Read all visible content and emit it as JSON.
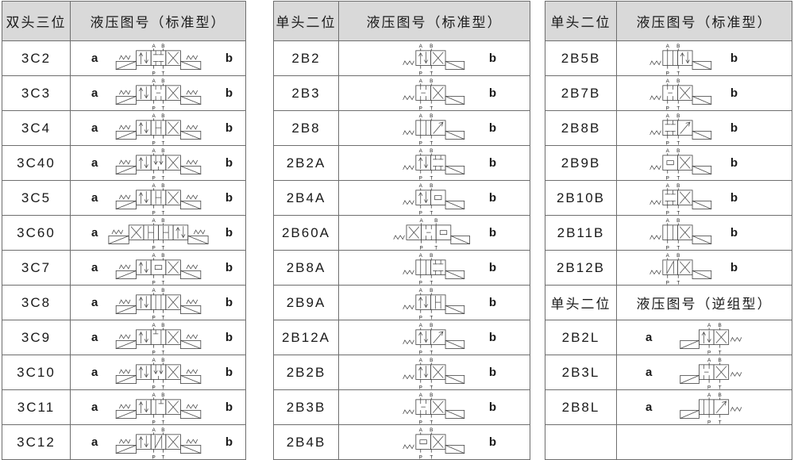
{
  "colors": {
    "page_bg": "#ffffff",
    "header_bg": "#d9d9d9",
    "border": "#6e6e6e",
    "text": "#1a1a1a",
    "line": "#4a4a4a"
  },
  "port_labels": {
    "a": "A",
    "b": "B",
    "p": "P",
    "t": "T"
  },
  "tables": [
    {
      "header": {
        "col1": "双头三位",
        "col2": "液压图号（标准型）"
      },
      "rows": [
        {
          "kind": "row",
          "code": "3C2",
          "left": "a",
          "right": "b",
          "symbol": {
            "form": "double",
            "boxes": [
              "arrows",
              "blocked",
              "x"
            ]
          }
        },
        {
          "kind": "row",
          "code": "3C3",
          "left": "a",
          "right": "b",
          "symbol": {
            "form": "double",
            "boxes": [
              "arrows",
              "hbar",
              "x"
            ]
          }
        },
        {
          "kind": "row",
          "code": "3C4",
          "left": "a",
          "right": "b",
          "symbol": {
            "form": "double",
            "boxes": [
              "arrows",
              "hfull",
              "x"
            ]
          }
        },
        {
          "kind": "row",
          "code": "3C40",
          "left": "a",
          "right": "b",
          "symbol": {
            "form": "double",
            "boxes": [
              "arrows",
              "down2",
              "x"
            ]
          }
        },
        {
          "kind": "row",
          "code": "3C5",
          "left": "a",
          "right": "b",
          "symbol": {
            "form": "double",
            "boxes": [
              "arrows",
              "hfull",
              "x"
            ]
          }
        },
        {
          "kind": "row",
          "code": "3C60",
          "left": "a",
          "right": "b",
          "symbol": {
            "form": "double",
            "boxes": [
              "x",
              "hfull",
              "hfull",
              "arrows"
            ]
          }
        },
        {
          "kind": "row",
          "code": "3C7",
          "left": "a",
          "right": "b",
          "symbol": {
            "form": "double",
            "boxes": [
              "arrows",
              "ubox",
              "x"
            ]
          }
        },
        {
          "kind": "row",
          "code": "3C8",
          "left": "a",
          "right": "b",
          "symbol": {
            "form": "double",
            "boxes": [
              "arrows",
              "open",
              "x"
            ]
          }
        },
        {
          "kind": "row",
          "code": "3C9",
          "left": "a",
          "right": "b",
          "symbol": {
            "form": "double",
            "boxes": [
              "arrows",
              "pb",
              "x"
            ]
          }
        },
        {
          "kind": "row",
          "code": "3C10",
          "left": "a",
          "right": "b",
          "symbol": {
            "form": "double",
            "boxes": [
              "arrows",
              "down2",
              "x"
            ]
          }
        },
        {
          "kind": "row",
          "code": "3C11",
          "left": "a",
          "right": "b",
          "symbol": {
            "form": "double",
            "boxes": [
              "arrows",
              "ob",
              "x"
            ]
          }
        },
        {
          "kind": "row",
          "code": "3C12",
          "left": "a",
          "right": "b",
          "symbol": {
            "form": "double",
            "boxes": [
              "arrows",
              "diagN",
              "x"
            ]
          }
        }
      ]
    },
    {
      "header": {
        "col1": "单头二位",
        "col2": "液压图号（标准型）"
      },
      "rows": [
        {
          "kind": "row",
          "code": "2B2",
          "left": "",
          "right": "b",
          "symbol": {
            "form": "sol-right",
            "boxes": [
              "arrows",
              "x"
            ]
          }
        },
        {
          "kind": "row",
          "code": "2B3",
          "left": "",
          "right": "b",
          "symbol": {
            "form": "sol-right",
            "boxes": [
              "hbar",
              "x"
            ]
          }
        },
        {
          "kind": "row",
          "code": "2B8",
          "left": "",
          "right": "b",
          "symbol": {
            "form": "sol-right",
            "boxes": [
              "open",
              "diag"
            ]
          }
        },
        {
          "kind": "row",
          "code": "2B2A",
          "left": "",
          "right": "b",
          "symbol": {
            "form": "sol-right",
            "boxes": [
              "arrows",
              "blocked"
            ]
          }
        },
        {
          "kind": "row",
          "code": "2B4A",
          "left": "",
          "right": "b",
          "symbol": {
            "form": "sol-right",
            "boxes": [
              "arrows",
              "ubox"
            ]
          }
        },
        {
          "kind": "row",
          "code": "2B60A",
          "left": "",
          "right": "b",
          "symbol": {
            "form": "sol-right",
            "boxes": [
              "x",
              "hbar",
              "ubox"
            ]
          }
        },
        {
          "kind": "row",
          "code": "2B8A",
          "left": "",
          "right": "b",
          "symbol": {
            "form": "sol-right",
            "boxes": [
              "open",
              "blocked"
            ]
          }
        },
        {
          "kind": "row",
          "code": "2B9A",
          "left": "",
          "right": "b",
          "symbol": {
            "form": "sol-right",
            "boxes": [
              "arrows",
              "hfull"
            ]
          }
        },
        {
          "kind": "row",
          "code": "2B12A",
          "left": "",
          "right": "b",
          "symbol": {
            "form": "sol-right",
            "boxes": [
              "arrows",
              "diag"
            ]
          }
        },
        {
          "kind": "row",
          "code": "2B2B",
          "left": "",
          "right": "b",
          "symbol": {
            "form": "sol-right",
            "boxes": [
              "arrows",
              "x"
            ]
          }
        },
        {
          "kind": "row",
          "code": "2B3B",
          "left": "",
          "right": "b",
          "symbol": {
            "form": "sol-right",
            "boxes": [
              "hbar",
              "x"
            ]
          }
        },
        {
          "kind": "row",
          "code": "2B4B",
          "left": "",
          "right": "b",
          "symbol": {
            "form": "sol-right",
            "boxes": [
              "ubox",
              "x"
            ]
          }
        }
      ]
    },
    {
      "header": {
        "col1": "单头二位",
        "col2": "液压图号（标准型）"
      },
      "rows": [
        {
          "kind": "row",
          "code": "2B5B",
          "left": "",
          "right": "b",
          "symbol": {
            "form": "sol-right",
            "boxes": [
              "open",
              "arrows"
            ]
          }
        },
        {
          "kind": "row",
          "code": "2B7B",
          "left": "",
          "right": "b",
          "symbol": {
            "form": "sol-right",
            "boxes": [
              "hbar",
              "x"
            ]
          }
        },
        {
          "kind": "row",
          "code": "2B8B",
          "left": "",
          "right": "b",
          "symbol": {
            "form": "sol-right",
            "boxes": [
              "blocked",
              "diag"
            ]
          }
        },
        {
          "kind": "row",
          "code": "2B9B",
          "left": "",
          "right": "b",
          "symbol": {
            "form": "sol-right",
            "boxes": [
              "ubox",
              "x"
            ]
          }
        },
        {
          "kind": "row",
          "code": "2B10B",
          "left": "",
          "right": "b",
          "symbol": {
            "form": "sol-right",
            "boxes": [
              "blocked",
              "x"
            ]
          }
        },
        {
          "kind": "row",
          "code": "2B11B",
          "left": "",
          "right": "b",
          "symbol": {
            "form": "sol-right",
            "boxes": [
              "open",
              "x"
            ]
          }
        },
        {
          "kind": "row",
          "code": "2B12B",
          "left": "",
          "right": "b",
          "symbol": {
            "form": "sol-right",
            "boxes": [
              "diagN",
              "x"
            ]
          }
        },
        {
          "kind": "subheader",
          "col1": "单头二位",
          "col2": "液压图号（逆组型）"
        },
        {
          "kind": "row",
          "code": "2B2L",
          "left": "a",
          "right": "",
          "symbol": {
            "form": "sol-left",
            "boxes": [
              "arrows",
              "x"
            ]
          }
        },
        {
          "kind": "row",
          "code": "2B3L",
          "left": "a",
          "right": "",
          "symbol": {
            "form": "sol-left",
            "boxes": [
              "hbar",
              "x"
            ]
          }
        },
        {
          "kind": "row",
          "code": "2B8L",
          "left": "a",
          "right": "",
          "symbol": {
            "form": "sol-left",
            "boxes": [
              "open",
              "diag"
            ]
          }
        },
        {
          "kind": "empty"
        }
      ]
    }
  ]
}
